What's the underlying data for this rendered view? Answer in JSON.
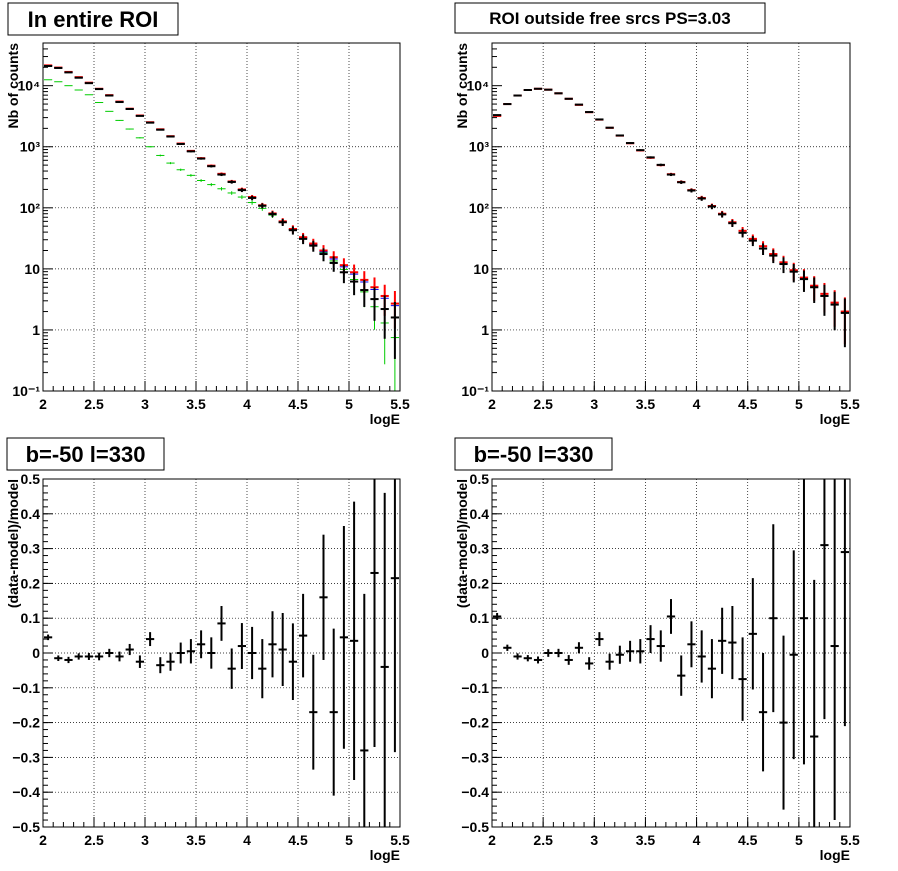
{
  "colors": {
    "data": "#000000",
    "model": "#ff0000",
    "total": "#0000ff",
    "component": "#00cc00",
    "grid": "#000000"
  },
  "chart_data": [
    {
      "type": "scatter",
      "title": "In entire ROI",
      "xlabel": "logE",
      "ylabel": "Nb of counts",
      "yscale": "log",
      "xlim": [
        2,
        5.5
      ],
      "ylim": [
        0.1,
        50000
      ],
      "grid": true,
      "x_ticks": [
        "2",
        "2.5",
        "3",
        "3.5",
        "4",
        "4.5",
        "5",
        "5.5"
      ],
      "y_ticks": [
        "10⁻¹",
        "1",
        "10",
        "10²",
        "10³",
        "10⁴"
      ],
      "bin_width": 0.1,
      "x": [
        2.05,
        2.15,
        2.25,
        2.35,
        2.45,
        2.55,
        2.65,
        2.75,
        2.85,
        2.95,
        3.05,
        3.15,
        3.25,
        3.35,
        3.45,
        3.55,
        3.65,
        3.75,
        3.85,
        3.95,
        4.05,
        4.15,
        4.25,
        4.35,
        4.45,
        4.55,
        4.65,
        4.75,
        4.85,
        4.95,
        5.05,
        5.15,
        5.25,
        5.35,
        5.45
      ],
      "series": [
        {
          "key": "data",
          "values": [
            21000,
            19500,
            16500,
            13500,
            11000,
            8800,
            6900,
            5400,
            4150,
            3200,
            2480,
            1900,
            1470,
            1110,
            840,
            640,
            480,
            350,
            265,
            195,
            145,
            108,
            79,
            58,
            43,
            31,
            24,
            17.5,
            12.5,
            8.8,
            6.2,
            4.5,
            3.2,
            2.2,
            1.6
          ]
        },
        {
          "key": "model",
          "values": [
            21500,
            19800,
            16800,
            13800,
            11200,
            8900,
            7000,
            5500,
            4200,
            3250,
            2520,
            1930,
            1490,
            1130,
            855,
            650,
            490,
            360,
            270,
            200,
            150,
            110,
            81,
            60,
            45,
            33,
            26,
            20,
            15.5,
            11.5,
            8.8,
            6.6,
            5.0,
            3.6,
            2.7
          ]
        },
        {
          "key": "total",
          "values": [
            21300,
            19600,
            16600,
            13600,
            11100,
            8850,
            6950,
            5450,
            4170,
            3220,
            2500,
            1910,
            1480,
            1120,
            845,
            645,
            485,
            355,
            267,
            197,
            147,
            109,
            80,
            59,
            44,
            32,
            25,
            19,
            14.5,
            10.8,
            8.2,
            6.1,
            4.6,
            3.3,
            2.5
          ]
        },
        {
          "key": "component",
          "values": [
            12500,
            11600,
            10000,
            8500,
            7100,
            5300,
            3800,
            2700,
            1950,
            1400,
            1000,
            720,
            540,
            420,
            340,
            280,
            240,
            205,
            175,
            150,
            122,
            98,
            76,
            58,
            44,
            33,
            25,
            18.5,
            13.5,
            9.8,
            6.7,
            4.2,
            2.4,
            1.3,
            0.75
          ]
        }
      ]
    },
    {
      "type": "scatter",
      "title": "ROI outside free srcs PS=3.03",
      "xlabel": "logE",
      "ylabel": "Nb of counts",
      "yscale": "log",
      "xlim": [
        2,
        5.5
      ],
      "ylim": [
        0.1,
        50000
      ],
      "grid": true,
      "x_ticks": [
        "2",
        "2.5",
        "3",
        "3.5",
        "4",
        "4.5",
        "5",
        "5.5"
      ],
      "y_ticks": [
        "10⁻¹",
        "1",
        "10",
        "10²",
        "10³",
        "10⁴"
      ],
      "bin_width": 0.1,
      "x": [
        2.05,
        2.15,
        2.25,
        2.35,
        2.45,
        2.55,
        2.65,
        2.75,
        2.85,
        2.95,
        3.05,
        3.15,
        3.25,
        3.35,
        3.45,
        3.55,
        3.65,
        3.75,
        3.85,
        3.95,
        4.05,
        4.15,
        4.25,
        4.35,
        4.45,
        4.55,
        4.65,
        4.75,
        4.85,
        4.95,
        5.05,
        5.15,
        5.25,
        5.35,
        5.45
      ],
      "series": [
        {
          "key": "data",
          "values": [
            3300,
            5000,
            6900,
            8500,
            8900,
            8600,
            7500,
            6100,
            4900,
            3700,
            2800,
            2050,
            1530,
            1150,
            880,
            670,
            505,
            350,
            262,
            192,
            142,
            105,
            78,
            56,
            39,
            29,
            21.5,
            16.5,
            12,
            9,
            6.8,
            5,
            3.6,
            2.6,
            1.9
          ]
        },
        {
          "key": "model",
          "values": [
            3200,
            5000,
            6900,
            8500,
            8900,
            8600,
            7500,
            6100,
            4850,
            3680,
            2780,
            2040,
            1520,
            1140,
            870,
            660,
            500,
            355,
            265,
            195,
            145,
            107,
            80,
            58,
            42,
            31,
            23.5,
            17.5,
            12.8,
            9.5,
            7.2,
            5.3,
            3.9,
            2.8,
            2.0
          ]
        }
      ]
    },
    {
      "type": "scatter",
      "title": "b=-50 l=330",
      "xlabel": "logE",
      "ylabel": "(data-model)/model",
      "xlim": [
        2,
        5.5
      ],
      "ylim": [
        -0.5,
        0.5
      ],
      "grid": true,
      "x_ticks": [
        "2",
        "2.5",
        "3",
        "3.5",
        "4",
        "4.5",
        "5",
        "5.5"
      ],
      "y_ticks": [
        "−0.5",
        "−0.4",
        "−0.3",
        "−0.2",
        "−0.1",
        "0",
        "0.1",
        "0.2",
        "0.3",
        "0.4",
        "0.5"
      ],
      "bin_width": 0.1,
      "x": [
        2.05,
        2.15,
        2.25,
        2.35,
        2.45,
        2.55,
        2.65,
        2.75,
        2.85,
        2.95,
        3.05,
        3.15,
        3.25,
        3.35,
        3.45,
        3.55,
        3.65,
        3.75,
        3.85,
        3.95,
        4.05,
        4.15,
        4.25,
        4.35,
        4.45,
        4.55,
        4.65,
        4.75,
        4.85,
        4.95,
        5.05,
        5.15,
        5.25,
        5.35,
        5.45
      ],
      "values": [
        0.045,
        -0.015,
        -0.02,
        -0.01,
        -0.01,
        -0.01,
        0.0,
        -0.01,
        0.01,
        -0.025,
        0.04,
        -0.035,
        -0.025,
        0.0,
        0.005,
        0.025,
        0.0,
        0.085,
        -0.045,
        0.02,
        0.0,
        -0.045,
        0.025,
        0.01,
        -0.025,
        0.05,
        -0.17,
        0.16,
        -0.17,
        0.045,
        0.035,
        -0.28,
        0.23,
        -0.04,
        0.215
      ],
      "errors": [
        0.008,
        0.008,
        0.009,
        0.009,
        0.01,
        0.011,
        0.012,
        0.014,
        0.016,
        0.018,
        0.02,
        0.023,
        0.026,
        0.03,
        0.035,
        0.04,
        0.045,
        0.05,
        0.058,
        0.066,
        0.075,
        0.085,
        0.095,
        0.105,
        0.11,
        0.12,
        0.165,
        0.18,
        0.24,
        0.32,
        0.4,
        0.45,
        0.5,
        0.5,
        0.5
      ]
    },
    {
      "type": "scatter",
      "title": "b=-50 l=330",
      "xlabel": "logE",
      "ylabel": "(data-model)/model",
      "xlim": [
        2,
        5.5
      ],
      "ylim": [
        -0.5,
        0.5
      ],
      "grid": true,
      "x_ticks": [
        "2",
        "2.5",
        "3",
        "3.5",
        "4",
        "4.5",
        "5",
        "5.5"
      ],
      "y_ticks": [
        "−0.5",
        "−0.4",
        "−0.3",
        "−0.2",
        "−0.1",
        "0",
        "0.1",
        "0.2",
        "0.3",
        "0.4",
        "0.5"
      ],
      "bin_width": 0.1,
      "x": [
        2.05,
        2.15,
        2.25,
        2.35,
        2.45,
        2.55,
        2.65,
        2.75,
        2.85,
        2.95,
        3.05,
        3.15,
        3.25,
        3.35,
        3.45,
        3.55,
        3.65,
        3.75,
        3.85,
        3.95,
        4.05,
        4.15,
        4.25,
        4.35,
        4.45,
        4.55,
        4.65,
        4.75,
        4.85,
        4.95,
        5.05,
        5.15,
        5.25,
        5.35,
        5.45
      ],
      "values": [
        0.105,
        0.015,
        -0.01,
        -0.015,
        -0.02,
        0.0,
        0.0,
        -0.02,
        0.015,
        -0.03,
        0.04,
        -0.025,
        -0.005,
        0.005,
        0.005,
        0.04,
        0.02,
        0.105,
        -0.065,
        0.025,
        -0.01,
        -0.045,
        0.035,
        0.03,
        -0.075,
        0.055,
        -0.17,
        0.1,
        -0.2,
        -0.005,
        0.1,
        -0.24,
        0.31,
        0.02,
        0.29
      ],
      "errors": [
        0.01,
        0.009,
        0.009,
        0.009,
        0.01,
        0.011,
        0.012,
        0.014,
        0.016,
        0.018,
        0.02,
        0.023,
        0.026,
        0.03,
        0.035,
        0.04,
        0.045,
        0.05,
        0.058,
        0.066,
        0.075,
        0.085,
        0.095,
        0.105,
        0.12,
        0.16,
        0.17,
        0.27,
        0.25,
        0.3,
        0.42,
        0.45,
        0.5,
        0.5,
        0.5
      ]
    }
  ]
}
